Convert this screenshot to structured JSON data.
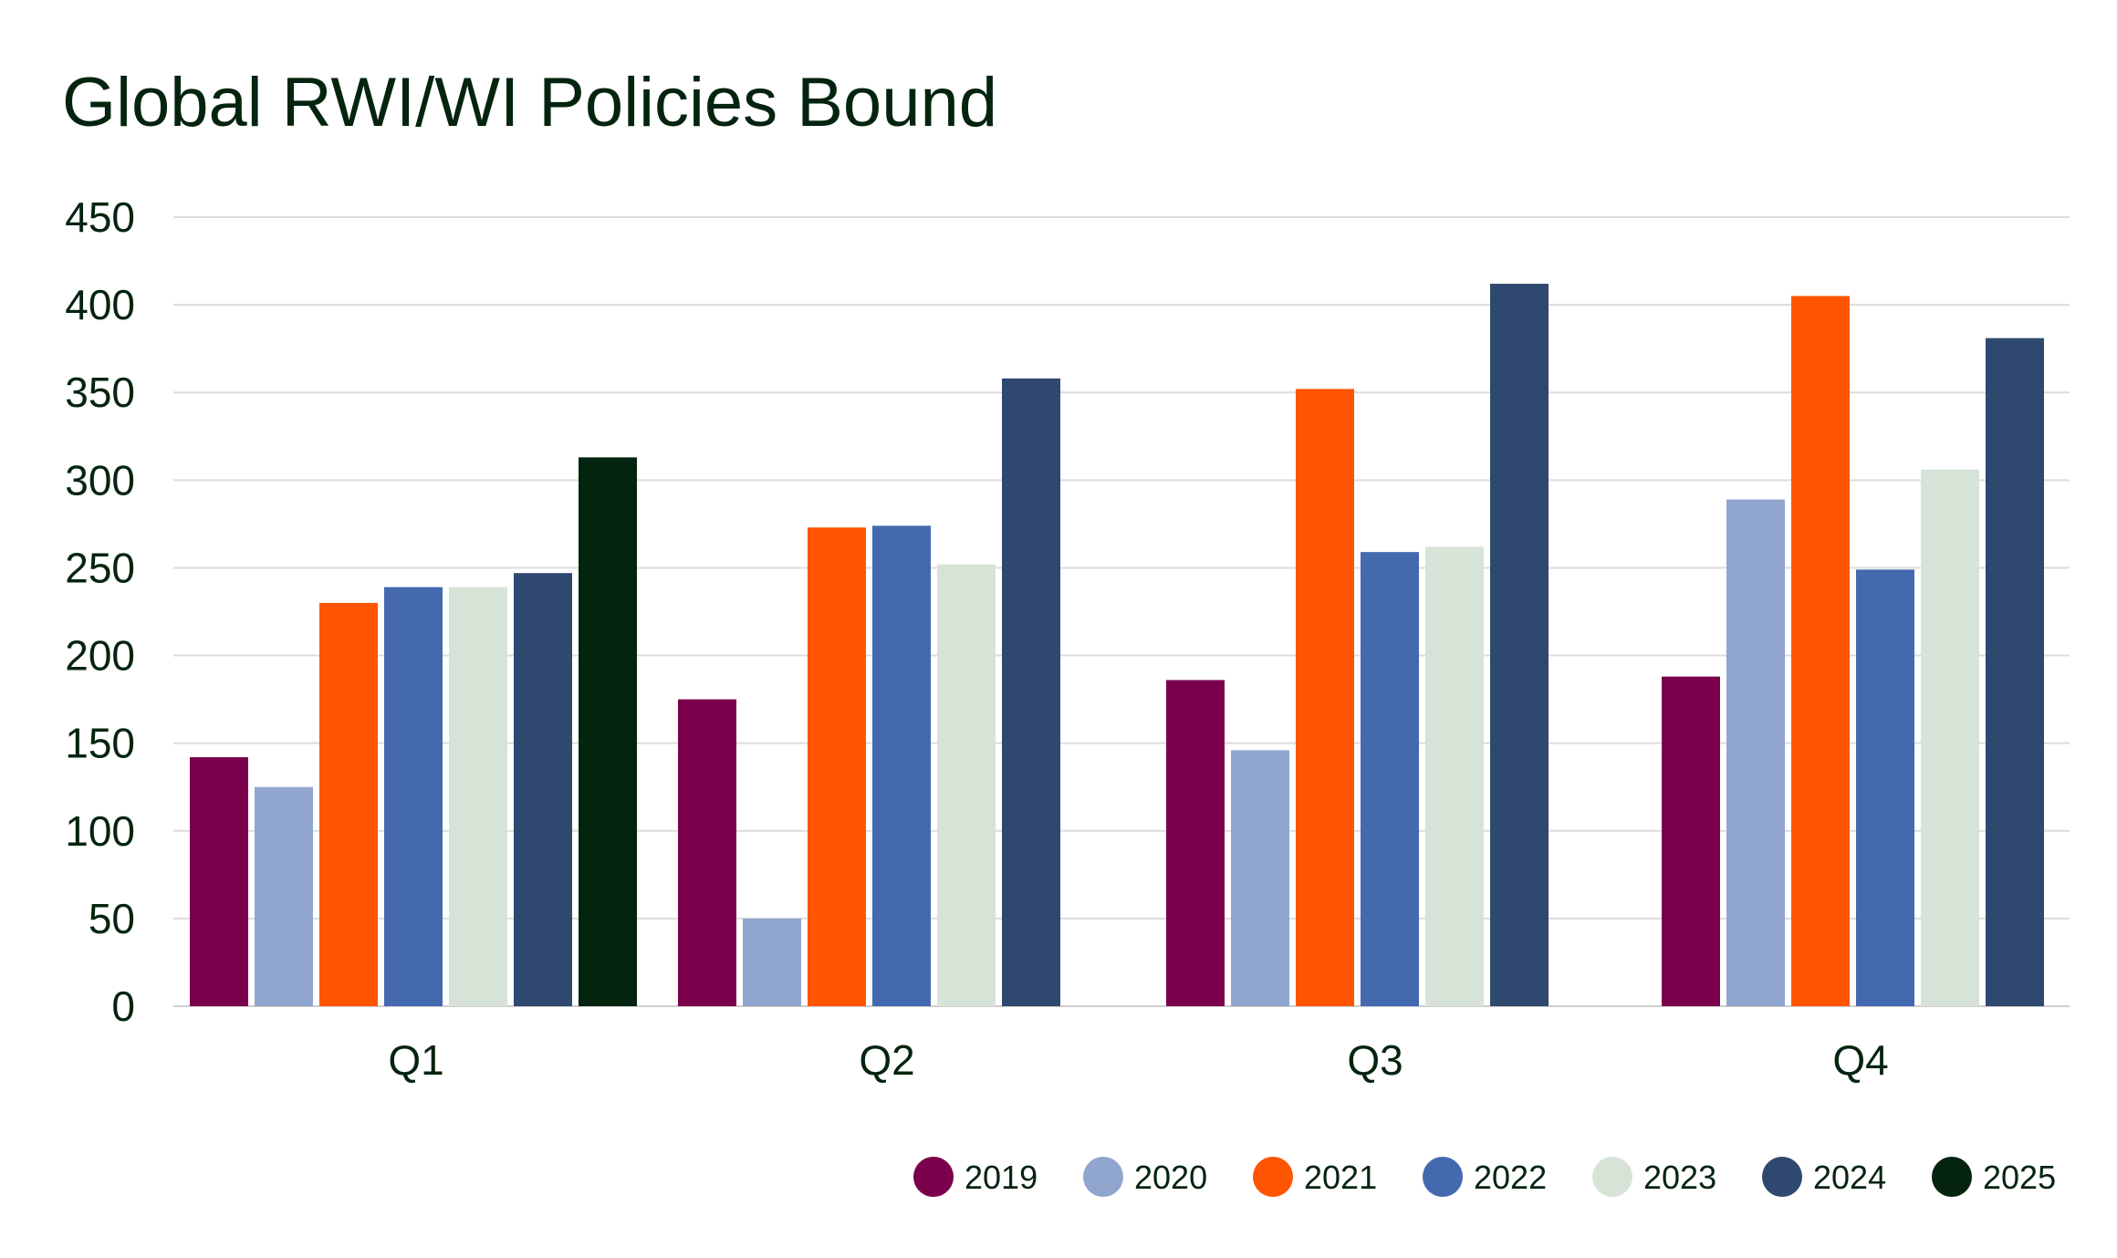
{
  "chart_data": {
    "type": "bar",
    "title": "Global RWI/WI Policies Bound",
    "categories": [
      "Q1",
      "Q2",
      "Q3",
      "Q4"
    ],
    "ylim": [
      0,
      450
    ],
    "yticks": [
      0,
      50,
      100,
      150,
      200,
      250,
      300,
      350,
      400,
      450
    ],
    "grid": true,
    "legend_position": "bottom-right",
    "series": [
      {
        "name": "2019",
        "color": "#7b004c",
        "values": [
          142,
          175,
          186,
          188
        ]
      },
      {
        "name": "2020",
        "color": "#91a6cf",
        "values": [
          125,
          50,
          146,
          289
        ]
      },
      {
        "name": "2021",
        "color": "#ff5400",
        "values": [
          230,
          273,
          352,
          405
        ]
      },
      {
        "name": "2022",
        "color": "#4469af",
        "values": [
          239,
          274,
          259,
          249
        ]
      },
      {
        "name": "2023",
        "color": "#d8e3d8",
        "values": [
          239,
          252,
          262,
          306
        ]
      },
      {
        "name": "2024",
        "color": "#2f4870",
        "values": [
          247,
          358,
          412,
          381
        ]
      },
      {
        "name": "2025",
        "color": "#05240f",
        "values": [
          313,
          null,
          null,
          null
        ]
      }
    ]
  }
}
